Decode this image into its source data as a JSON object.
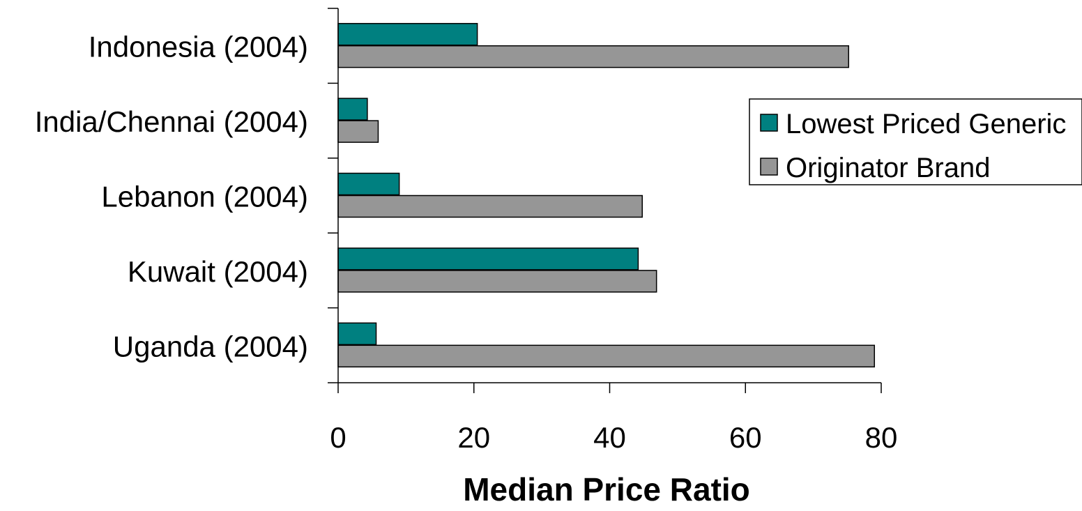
{
  "chart_data": {
    "type": "bar",
    "orientation": "horizontal",
    "title": "",
    "xlabel": "Median Price Ratio",
    "ylabel": "",
    "categories": [
      "Indonesia (2004)",
      "India/Chennai (2004)",
      "Lebanon (2004)",
      "Kuwait (2004)",
      "Uganda (2004)"
    ],
    "series": [
      {
        "name": "Lowest Priced Generic",
        "color": "#008080",
        "values": [
          20.5,
          4.3,
          9.0,
          44.2,
          5.6
        ]
      },
      {
        "name": "Originator Brand",
        "color": "#969696",
        "values": [
          75.2,
          5.9,
          44.8,
          46.9,
          79.0
        ]
      }
    ],
    "xlim": [
      0,
      80
    ],
    "xticks": [
      "0",
      "20",
      "40",
      "60",
      "80"
    ],
    "grid": false,
    "legend_position": "right"
  }
}
